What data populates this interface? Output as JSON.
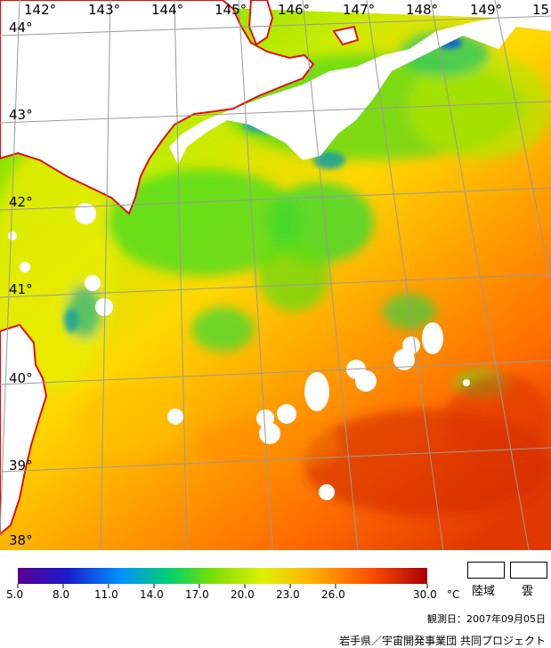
{
  "map": {
    "longitude_labels": [
      "142°",
      "143°",
      "144°",
      "145°",
      "146°",
      "147°",
      "148°",
      "149°",
      "15"
    ],
    "latitude_labels": [
      "44°",
      "43°",
      "42°",
      "41°",
      "40°",
      "39°",
      "38°"
    ],
    "colors": {
      "land": "#ffffff",
      "cloud": "#ffffff",
      "coastline": "#e01010",
      "grid": "#9a9a9a"
    }
  },
  "colorbar": {
    "tick_labels": [
      "5.0",
      "8.0",
      "11.0",
      "14.0",
      "17.0",
      "20.0",
      "23.0",
      "26.0",
      "30.0"
    ],
    "unit": "°C",
    "colors": [
      "#5a0090",
      "#1a1acc",
      "#0090ff",
      "#00d070",
      "#7ce000",
      "#e0f000",
      "#ffb000",
      "#ff5000",
      "#a80000"
    ]
  },
  "legend_keys": [
    {
      "label": "陸域"
    },
    {
      "label": "雲"
    }
  ],
  "observation_date": "観測日：2007年09月05日",
  "credit": "岩手県／宇宙開発事業団 共同プロジェクト"
}
